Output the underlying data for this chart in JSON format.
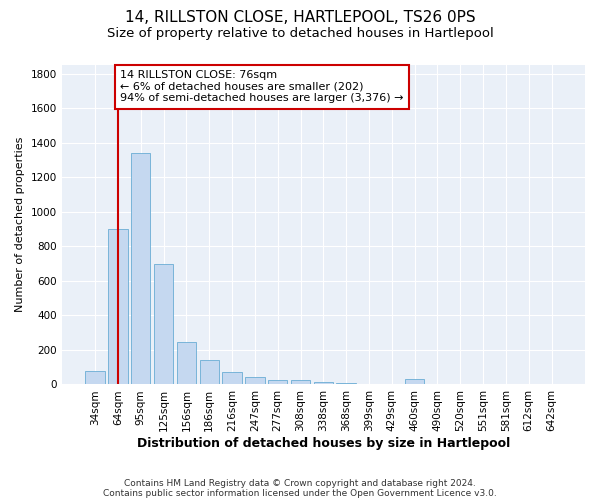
{
  "title": "14, RILLSTON CLOSE, HARTLEPOOL, TS26 0PS",
  "subtitle": "Size of property relative to detached houses in Hartlepool",
  "xlabel": "Distribution of detached houses by size in Hartlepool",
  "ylabel": "Number of detached properties",
  "categories": [
    "34sqm",
    "64sqm",
    "95sqm",
    "125sqm",
    "156sqm",
    "186sqm",
    "216sqm",
    "247sqm",
    "277sqm",
    "308sqm",
    "338sqm",
    "368sqm",
    "399sqm",
    "429sqm",
    "460sqm",
    "490sqm",
    "520sqm",
    "551sqm",
    "581sqm",
    "612sqm",
    "642sqm"
  ],
  "values": [
    80,
    900,
    1340,
    700,
    245,
    140,
    70,
    45,
    25,
    25,
    15,
    10,
    0,
    0,
    30,
    0,
    0,
    0,
    0,
    0,
    0
  ],
  "bar_color": "#c5d8f0",
  "bar_edgecolor": "#6aadd5",
  "vline_x_index": 1,
  "vline_color": "#cc0000",
  "annotation_text": "14 RILLSTON CLOSE: 76sqm\n← 6% of detached houses are smaller (202)\n94% of semi-detached houses are larger (3,376) →",
  "annotation_box_color": "#ffffff",
  "annotation_box_edgecolor": "#cc0000",
  "ylim": [
    0,
    1850
  ],
  "yticks": [
    0,
    200,
    400,
    600,
    800,
    1000,
    1200,
    1400,
    1600,
    1800
  ],
  "bg_color": "#eaf0f8",
  "footnote_line1": "Contains HM Land Registry data © Crown copyright and database right 2024.",
  "footnote_line2": "Contains public sector information licensed under the Open Government Licence v3.0.",
  "title_fontsize": 11,
  "subtitle_fontsize": 9.5,
  "xlabel_fontsize": 9,
  "ylabel_fontsize": 8,
  "tick_fontsize": 7.5,
  "annotation_fontsize": 8,
  "footnote_fontsize": 6.5
}
